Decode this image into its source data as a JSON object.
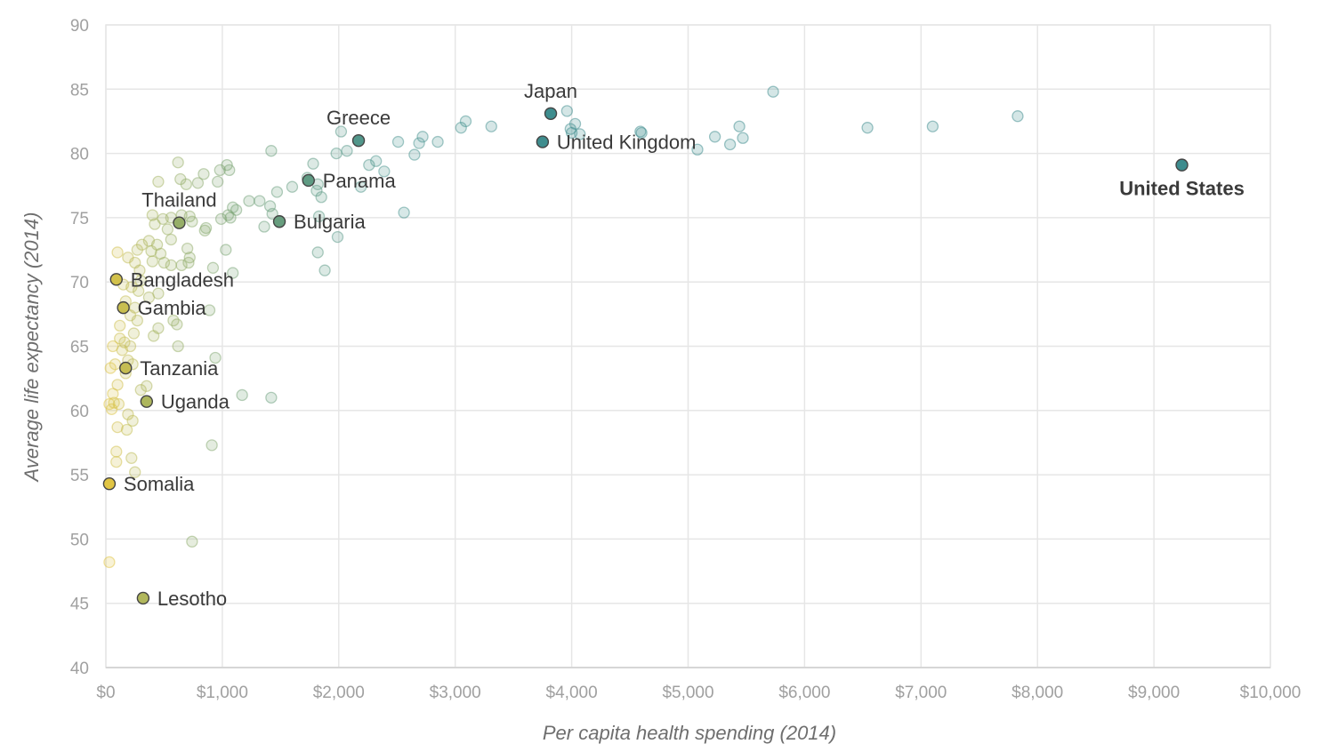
{
  "chart_data": {
    "type": "scatter",
    "title": "",
    "xlabel": "Per capita health spending (2014)",
    "ylabel": "Average life expectancy (2014)",
    "xlim": [
      0,
      10000
    ],
    "ylim": [
      40,
      90
    ],
    "x_ticks": [
      0,
      1000,
      2000,
      3000,
      4000,
      5000,
      6000,
      7000,
      8000,
      9000,
      10000
    ],
    "x_tick_labels": [
      "$0",
      "$1,000",
      "$2,000",
      "$3,000",
      "$4,000",
      "$5,000",
      "$6,000",
      "$7,000",
      "$8,000",
      "$9,000",
      "$10,000"
    ],
    "y_ticks": [
      40,
      45,
      50,
      55,
      60,
      65,
      70,
      75,
      80,
      85,
      90
    ],
    "y_tick_labels": [
      "40",
      "45",
      "50",
      "55",
      "60",
      "65",
      "70",
      "75",
      "80",
      "85",
      "90"
    ],
    "grid": true,
    "color_scale": [
      "#f0c93c",
      "#a8b560",
      "#6fa079",
      "#4a9490",
      "#3d8c8e"
    ],
    "highlighted": [
      {
        "name": "Japan",
        "x": 3820,
        "y": 83.1,
        "label_pos": "above"
      },
      {
        "name": "Greece",
        "x": 2170,
        "y": 81.0,
        "label_pos": "above"
      },
      {
        "name": "United Kingdom",
        "x": 3750,
        "y": 80.9,
        "label_pos": "right"
      },
      {
        "name": "United States",
        "x": 9240,
        "y": 79.1,
        "label_pos": "below",
        "bold": true
      },
      {
        "name": "Panama",
        "x": 1740,
        "y": 77.9,
        "label_pos": "right"
      },
      {
        "name": "Thailand",
        "x": 630,
        "y": 74.6,
        "label_pos": "above"
      },
      {
        "name": "Bulgaria",
        "x": 1490,
        "y": 74.7,
        "label_pos": "right"
      },
      {
        "name": "Bangladesh",
        "x": 90,
        "y": 70.2,
        "label_pos": "right"
      },
      {
        "name": "Gambia",
        "x": 150,
        "y": 68.0,
        "label_pos": "right"
      },
      {
        "name": "Tanzania",
        "x": 170,
        "y": 63.3,
        "label_pos": "right"
      },
      {
        "name": "Uganda",
        "x": 350,
        "y": 60.7,
        "label_pos": "right"
      },
      {
        "name": "Somalia",
        "x": 30,
        "y": 54.3,
        "label_pos": "right"
      },
      {
        "name": "Lesotho",
        "x": 320,
        "y": 45.4,
        "label_pos": "right"
      }
    ],
    "points": [
      [
        5730,
        84.8
      ],
      [
        3960,
        83.3
      ],
      [
        7830,
        82.9
      ],
      [
        3090,
        82.5
      ],
      [
        4030,
        82.3
      ],
      [
        3310,
        82.1
      ],
      [
        5440,
        82.1
      ],
      [
        7100,
        82.1
      ],
      [
        3050,
        82.0
      ],
      [
        6540,
        82.0
      ],
      [
        3990,
        81.9
      ],
      [
        4000,
        81.6
      ],
      [
        4070,
        81.5
      ],
      [
        2020,
        81.7
      ],
      [
        4590,
        81.7
      ],
      [
        4600,
        81.6
      ],
      [
        5230,
        81.3
      ],
      [
        5470,
        81.2
      ],
      [
        2720,
        81.3
      ],
      [
        2510,
        80.9
      ],
      [
        2850,
        80.9
      ],
      [
        2690,
        80.8
      ],
      [
        5360,
        80.7
      ],
      [
        5080,
        80.3
      ],
      [
        2650,
        79.9
      ],
      [
        2070,
        80.2
      ],
      [
        1420,
        80.2
      ],
      [
        1980,
        80.0
      ],
      [
        2320,
        79.4
      ],
      [
        2260,
        79.1
      ],
      [
        1780,
        79.2
      ],
      [
        620,
        79.3
      ],
      [
        1040,
        79.1
      ],
      [
        1060,
        78.7
      ],
      [
        980,
        78.7
      ],
      [
        840,
        78.4
      ],
      [
        2390,
        78.6
      ],
      [
        1730,
        78.1
      ],
      [
        640,
        78.0
      ],
      [
        790,
        77.7
      ],
      [
        690,
        77.6
      ],
      [
        1820,
        77.6
      ],
      [
        960,
        77.8
      ],
      [
        450,
        77.8
      ],
      [
        1600,
        77.4
      ],
      [
        1810,
        77.1
      ],
      [
        1470,
        77.0
      ],
      [
        2190,
        77.4
      ],
      [
        1850,
        76.6
      ],
      [
        1230,
        76.3
      ],
      [
        1320,
        76.3
      ],
      [
        1410,
        75.9
      ],
      [
        1090,
        75.8
      ],
      [
        1120,
        75.6
      ],
      [
        2560,
        75.4
      ],
      [
        1430,
        75.3
      ],
      [
        1070,
        75.0
      ],
      [
        1050,
        75.2
      ],
      [
        990,
        74.9
      ],
      [
        720,
        75.1
      ],
      [
        740,
        74.7
      ],
      [
        650,
        75.2
      ],
      [
        560,
        75.0
      ],
      [
        400,
        75.2
      ],
      [
        490,
        74.9
      ],
      [
        1830,
        75.1
      ],
      [
        420,
        74.5
      ],
      [
        530,
        74.1
      ],
      [
        860,
        74.2
      ],
      [
        850,
        74.0
      ],
      [
        1360,
        74.3
      ],
      [
        1990,
        73.5
      ],
      [
        560,
        73.3
      ],
      [
        440,
        72.9
      ],
      [
        370,
        73.2
      ],
      [
        310,
        72.9
      ],
      [
        390,
        72.4
      ],
      [
        470,
        72.2
      ],
      [
        270,
        72.5
      ],
      [
        1030,
        72.5
      ],
      [
        700,
        72.6
      ],
      [
        100,
        72.3
      ],
      [
        190,
        71.9
      ],
      [
        720,
        71.9
      ],
      [
        500,
        71.5
      ],
      [
        400,
        71.6
      ],
      [
        250,
        71.5
      ],
      [
        560,
        71.3
      ],
      [
        650,
        71.3
      ],
      [
        710,
        71.5
      ],
      [
        920,
        71.1
      ],
      [
        1090,
        70.7
      ],
      [
        290,
        70.9
      ],
      [
        1820,
        72.3
      ],
      [
        1880,
        70.9
      ],
      [
        300,
        70.1
      ],
      [
        150,
        69.8
      ],
      [
        220,
        69.6
      ],
      [
        280,
        69.3
      ],
      [
        450,
        69.1
      ],
      [
        370,
        68.8
      ],
      [
        170,
        68.5
      ],
      [
        250,
        68.0
      ],
      [
        890,
        67.8
      ],
      [
        210,
        67.4
      ],
      [
        270,
        67.0
      ],
      [
        580,
        67.0
      ],
      [
        610,
        66.7
      ],
      [
        120,
        66.6
      ],
      [
        450,
        66.4
      ],
      [
        240,
        66.0
      ],
      [
        410,
        65.8
      ],
      [
        120,
        65.6
      ],
      [
        160,
        65.3
      ],
      [
        60,
        65.0
      ],
      [
        210,
        65.0
      ],
      [
        620,
        65.0
      ],
      [
        140,
        64.7
      ],
      [
        190,
        63.9
      ],
      [
        940,
        64.1
      ],
      [
        230,
        63.6
      ],
      [
        80,
        63.6
      ],
      [
        40,
        63.3
      ],
      [
        170,
        62.9
      ],
      [
        100,
        62.0
      ],
      [
        300,
        61.6
      ],
      [
        350,
        61.9
      ],
      [
        60,
        61.3
      ],
      [
        1170,
        61.2
      ],
      [
        1420,
        61.0
      ],
      [
        30,
        60.5
      ],
      [
        70,
        60.6
      ],
      [
        110,
        60.5
      ],
      [
        50,
        60.1
      ],
      [
        190,
        59.7
      ],
      [
        230,
        59.2
      ],
      [
        100,
        58.7
      ],
      [
        180,
        58.5
      ],
      [
        910,
        57.3
      ],
      [
        90,
        56.8
      ],
      [
        220,
        56.3
      ],
      [
        90,
        56.0
      ],
      [
        250,
        55.2
      ],
      [
        30,
        48.2
      ],
      [
        740,
        49.8
      ]
    ]
  }
}
